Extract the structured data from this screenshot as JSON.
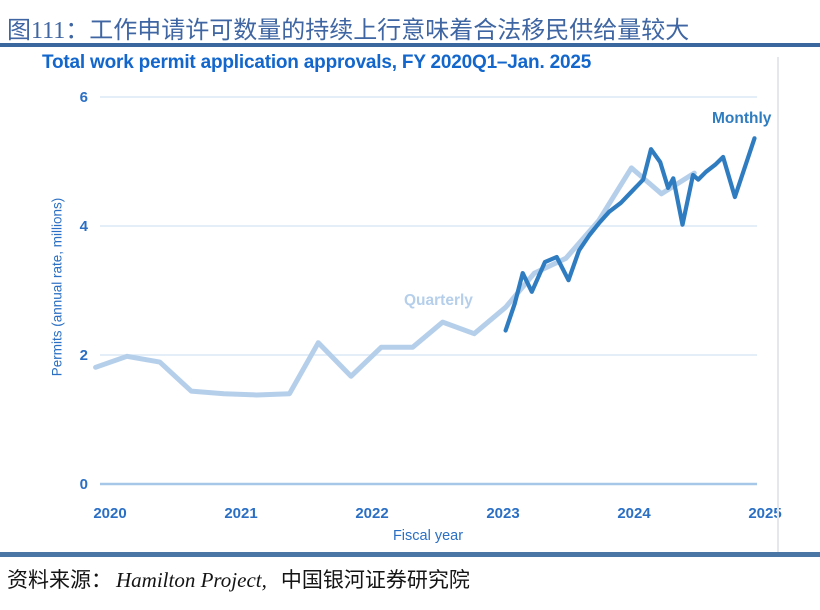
{
  "caption": {
    "text": "图111：工作申请许可数量的持续上行意味着合法移民供给量较大"
  },
  "source": {
    "prefix": "资料来源：",
    "en": "Hamilton Project,",
    "cn": "中国银河证券研究院"
  },
  "chart_data": {
    "type": "line",
    "title": "Total work permit application approvals, FY 2020Q1–Jan. 2025",
    "xlabel": "Fiscal year",
    "ylabel": "Permits (annual rate, millions)",
    "x_ticks": [
      2020,
      2021,
      2022,
      2023,
      2024,
      2025
    ],
    "y_ticks": [
      0,
      2,
      4,
      6
    ],
    "ylim": [
      0,
      6
    ],
    "xlim": [
      2019.85,
      2025.05
    ],
    "grid": "horizontal",
    "grid_color": "#dce9f7",
    "zero_line_color": "#a7c7e8",
    "axis_text_color": "#2a6fc4",
    "legend_position": "inline-labels",
    "series": [
      {
        "name": "Quarterly",
        "color": "#b5cfeb",
        "line_width": 5,
        "x": [
          2019.89,
          2020.13,
          2020.38,
          2020.62,
          2020.87,
          2021.12,
          2021.37,
          2021.59,
          2021.84,
          2022.07,
          2022.31,
          2022.54,
          2022.78,
          2023.02,
          2023.24,
          2023.48,
          2023.73,
          2023.98,
          2024.21,
          2024.46
        ],
        "values": [
          1.81,
          1.98,
          1.89,
          1.44,
          1.4,
          1.38,
          1.4,
          2.19,
          1.67,
          2.12,
          2.12,
          2.51,
          2.33,
          2.74,
          3.27,
          3.5,
          4.08,
          4.9,
          4.5,
          4.82
        ]
      },
      {
        "name": "Monthly",
        "color": "#2f7cc0",
        "line_width": 4.2,
        "x": [
          2023.02,
          2023.09,
          2023.15,
          2023.22,
          2023.32,
          2023.41,
          2023.5,
          2023.58,
          2023.66,
          2023.74,
          2023.81,
          2023.9,
          2023.99,
          2024.07,
          2024.13,
          2024.2,
          2024.26,
          2024.3,
          2024.37,
          2024.45,
          2024.49,
          2024.55,
          2024.62,
          2024.68,
          2024.77,
          2024.92
        ],
        "values": [
          2.38,
          2.8,
          3.27,
          2.98,
          3.44,
          3.52,
          3.16,
          3.62,
          3.86,
          4.06,
          4.22,
          4.36,
          4.55,
          4.72,
          5.19,
          4.99,
          4.59,
          4.74,
          4.02,
          4.79,
          4.72,
          4.84,
          4.95,
          5.07,
          4.45,
          5.36
        ]
      }
    ]
  }
}
